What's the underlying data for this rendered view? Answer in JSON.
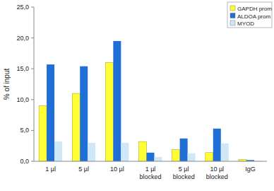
{
  "chart_data": {
    "type": "bar",
    "y_label": "% of input",
    "categories": [
      "1 µl",
      "5 µl",
      "10 µl",
      "1 µl blocked",
      "5 µl blocked",
      "10 µl blocked",
      "IgG"
    ],
    "series": [
      {
        "name": "GAPDH prom",
        "color": "#ffff33",
        "values": [
          9.0,
          11.0,
          16.0,
          3.2,
          1.9,
          1.4,
          0.3
        ]
      },
      {
        "name": "ALDOA prom",
        "color": "#1f6fd6",
        "values": [
          15.7,
          15.4,
          19.5,
          1.4,
          3.7,
          5.3,
          0.2
        ]
      },
      {
        "name": "MYOD",
        "color": "#cfe8f8",
        "values": [
          3.2,
          3.0,
          3.0,
          0.7,
          1.3,
          2.9,
          0.1
        ]
      }
    ],
    "ylim": [
      0,
      25
    ],
    "yticks": [
      {
        "value": 0,
        "label": "0,0"
      },
      {
        "value": 5,
        "label": "5,0"
      },
      {
        "value": 10,
        "label": "10,0"
      },
      {
        "value": 15,
        "label": "15,0"
      },
      {
        "value": 20,
        "label": "20,0"
      },
      {
        "value": 25,
        "label": "25,0"
      }
    ],
    "grid": false,
    "legend": "top-right"
  }
}
